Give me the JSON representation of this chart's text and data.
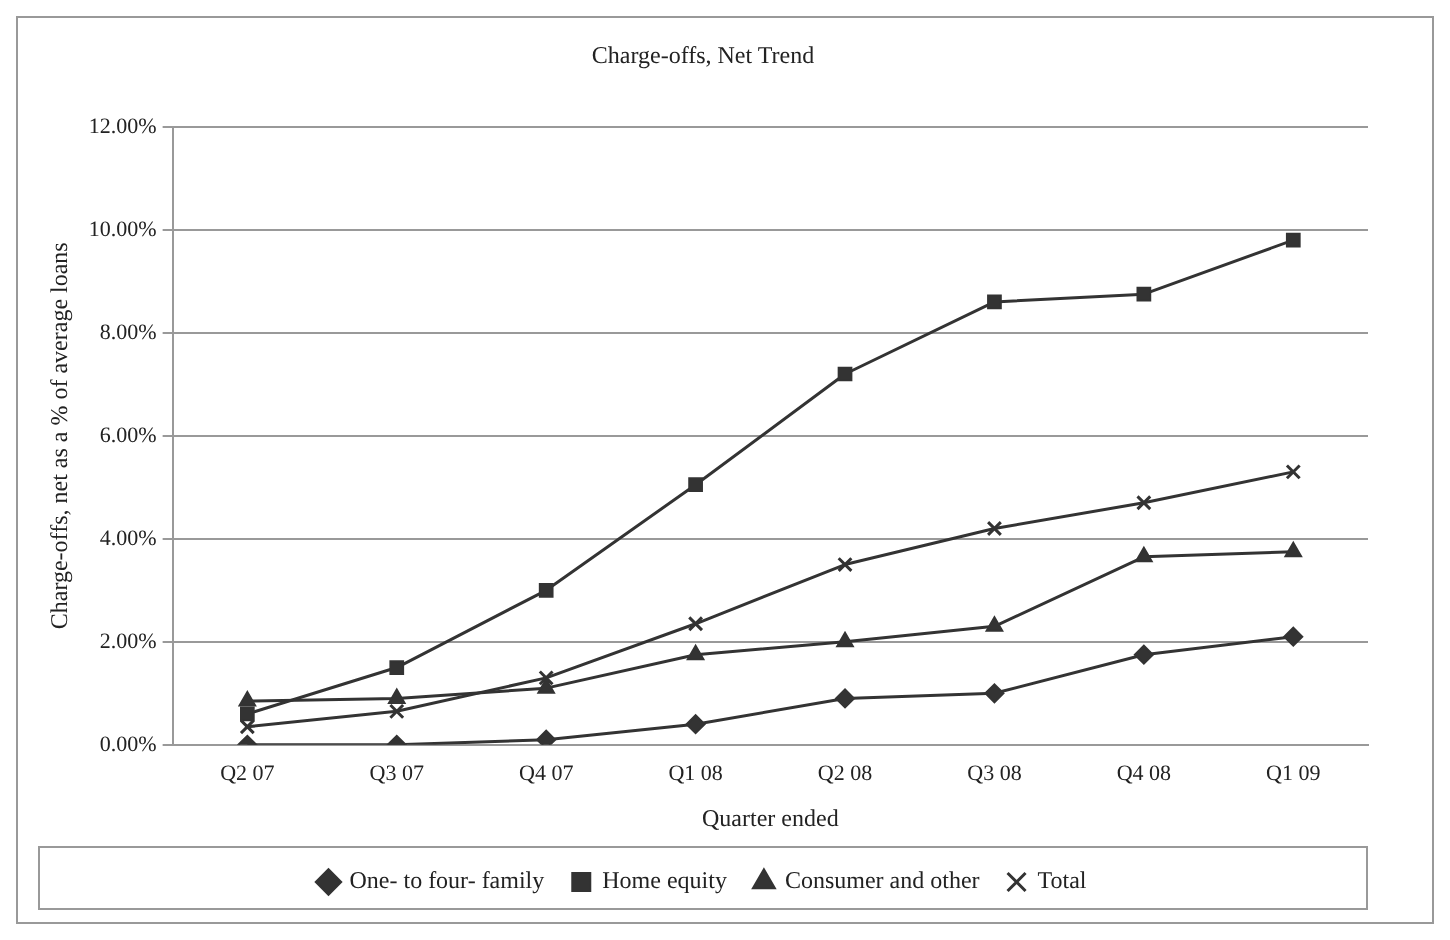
{
  "chart_data": {
    "type": "line",
    "title": "Charge-offs, Net Trend",
    "xlabel": "Quarter ended",
    "ylabel": "Charge-offs, net as a % of average loans",
    "categories": [
      "Q2 07",
      "Q3 07",
      "Q4 07",
      "Q1 08",
      "Q2 08",
      "Q3 08",
      "Q4 08",
      "Q1 09"
    ],
    "series": [
      {
        "name": "One- to four- family",
        "color": "#333333",
        "marker": "diamond",
        "values": [
          0,
          0,
          0.1,
          0.4,
          0.9,
          1.0,
          1.75,
          2.1
        ]
      },
      {
        "name": "Home equity",
        "color": "#333333",
        "marker": "square",
        "values": [
          0.6,
          1.5,
          3.0,
          5.05,
          7.2,
          8.6,
          8.75,
          9.8
        ]
      },
      {
        "name": "Consumer and other",
        "color": "#333333",
        "marker": "triangle",
        "values": [
          0.85,
          0.9,
          1.1,
          1.75,
          2.0,
          2.3,
          3.65,
          3.75
        ]
      },
      {
        "name": "Total",
        "color": "#333333",
        "marker": "cross",
        "values": [
          0.35,
          0.65,
          1.3,
          2.35,
          3.5,
          4.2,
          4.7,
          5.3
        ]
      }
    ],
    "ylim": [
      0,
      12
    ],
    "yticks": [
      {
        "value": 0,
        "label": "0.00%"
      },
      {
        "value": 2,
        "label": "2.00%"
      },
      {
        "value": 4,
        "label": "4.00%"
      },
      {
        "value": 6,
        "label": "6.00%"
      },
      {
        "value": 8,
        "label": "8.00%"
      },
      {
        "value": 10,
        "label": "10.00%"
      },
      {
        "value": 12,
        "label": "12.00%"
      }
    ],
    "grid": "y",
    "legend": "bottom",
    "line_style": "solid"
  }
}
